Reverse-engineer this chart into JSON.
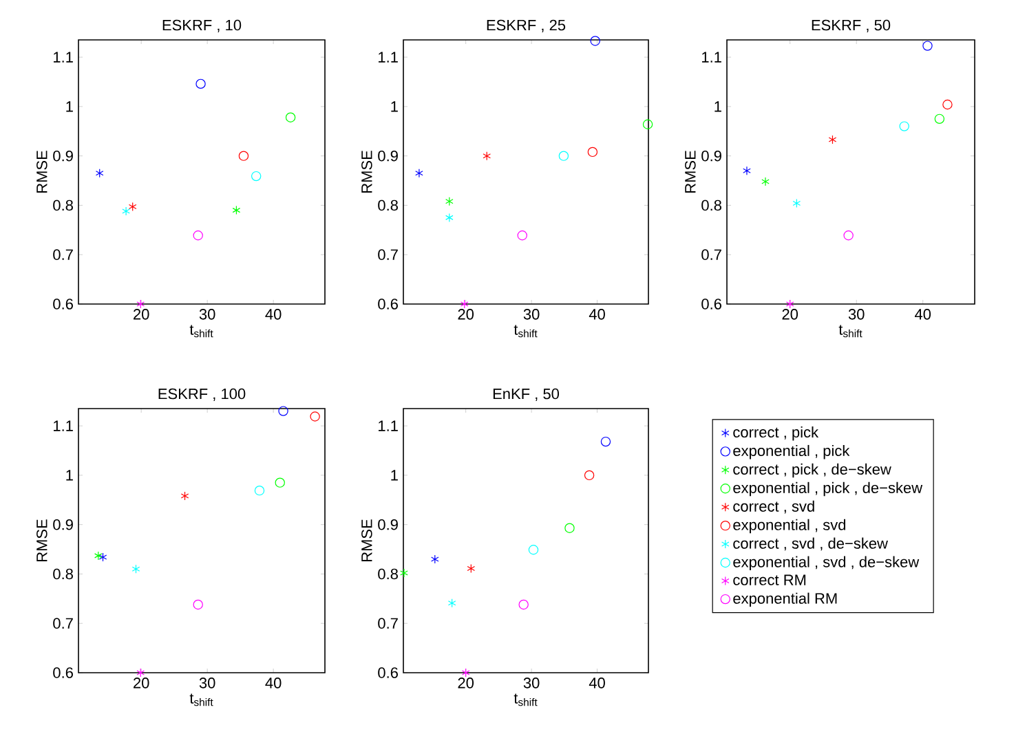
{
  "chart_data": [
    {
      "type": "scatter",
      "title": "ESKRF , 10",
      "xlabel": "t$_{shift}$",
      "ylabel": "RMSE",
      "xlim": [
        10.5,
        47.8
      ],
      "ylim": [
        0.6,
        1.135
      ],
      "xticks": [
        20,
        30,
        40
      ],
      "yticks": [
        0.6,
        0.7,
        0.8,
        0.9,
        1,
        1.1
      ],
      "series": [
        {
          "color": "#0000ff",
          "marker": "cross",
          "x": [
            13.7
          ],
          "values": [
            0.865
          ]
        },
        {
          "color": "#0000ff",
          "marker": "circle",
          "x": [
            29.0
          ],
          "values": [
            1.046
          ]
        },
        {
          "color": "#00ff00",
          "marker": "cross",
          "x": [
            34.4
          ],
          "values": [
            0.79
          ]
        },
        {
          "color": "#00ff00",
          "marker": "circle",
          "x": [
            42.6
          ],
          "values": [
            0.978
          ]
        },
        {
          "color": "#ff0000",
          "marker": "cross",
          "x": [
            18.7
          ],
          "values": [
            0.797
          ]
        },
        {
          "color": "#ff0000",
          "marker": "circle",
          "x": [
            35.5
          ],
          "values": [
            0.9
          ]
        },
        {
          "color": "#00ffff",
          "marker": "cross",
          "x": [
            17.7
          ],
          "values": [
            0.788
          ]
        },
        {
          "color": "#00ffff",
          "marker": "circle",
          "x": [
            37.4
          ],
          "values": [
            0.859
          ]
        },
        {
          "color": "#ff00ff",
          "marker": "cross",
          "x": [
            19.9
          ],
          "values": [
            0.6
          ]
        },
        {
          "color": "#ff00ff",
          "marker": "circle",
          "x": [
            28.6
          ],
          "values": [
            0.739
          ]
        }
      ]
    },
    {
      "type": "scatter",
      "title": "ESKRF , 25",
      "xlabel": "t$_{shift}$",
      "ylabel": "RMSE",
      "xlim": [
        10.5,
        47.8
      ],
      "ylim": [
        0.6,
        1.135
      ],
      "xticks": [
        20,
        30,
        40
      ],
      "yticks": [
        0.6,
        0.7,
        0.8,
        0.9,
        1,
        1.1
      ],
      "series": [
        {
          "color": "#0000ff",
          "marker": "cross",
          "x": [
            12.9
          ],
          "values": [
            0.865
          ]
        },
        {
          "color": "#0000ff",
          "marker": "circle",
          "x": [
            39.7
          ],
          "values": [
            1.133
          ]
        },
        {
          "color": "#00ff00",
          "marker": "cross",
          "x": [
            17.5
          ],
          "values": [
            0.808
          ]
        },
        {
          "color": "#00ff00",
          "marker": "circle",
          "x": [
            47.7
          ],
          "values": [
            0.964
          ]
        },
        {
          "color": "#ff0000",
          "marker": "cross",
          "x": [
            23.2
          ],
          "values": [
            0.9
          ]
        },
        {
          "color": "#ff0000",
          "marker": "circle",
          "x": [
            39.3
          ],
          "values": [
            0.908
          ]
        },
        {
          "color": "#00ffff",
          "marker": "cross",
          "x": [
            17.5
          ],
          "values": [
            0.775
          ]
        },
        {
          "color": "#00ffff",
          "marker": "circle",
          "x": [
            34.9
          ],
          "values": [
            0.9
          ]
        },
        {
          "color": "#ff00ff",
          "marker": "cross",
          "x": [
            19.8
          ],
          "values": [
            0.6
          ]
        },
        {
          "color": "#ff00ff",
          "marker": "circle",
          "x": [
            28.6
          ],
          "values": [
            0.739
          ]
        }
      ]
    },
    {
      "type": "scatter",
      "title": "ESKRF , 50",
      "xlabel": "t$_{shift}$",
      "ylabel": "RMSE",
      "xlim": [
        10.5,
        47.8
      ],
      "ylim": [
        0.6,
        1.135
      ],
      "xticks": [
        20,
        30,
        40
      ],
      "yticks": [
        0.6,
        0.7,
        0.8,
        0.9,
        1,
        1.1
      ],
      "series": [
        {
          "color": "#0000ff",
          "marker": "cross",
          "x": [
            13.5
          ],
          "values": [
            0.87
          ]
        },
        {
          "color": "#0000ff",
          "marker": "circle",
          "x": [
            40.7
          ],
          "values": [
            1.123
          ]
        },
        {
          "color": "#00ff00",
          "marker": "cross",
          "x": [
            16.3
          ],
          "values": [
            0.848
          ]
        },
        {
          "color": "#00ff00",
          "marker": "circle",
          "x": [
            42.5
          ],
          "values": [
            0.975
          ]
        },
        {
          "color": "#ff0000",
          "marker": "cross",
          "x": [
            26.4
          ],
          "values": [
            0.933
          ]
        },
        {
          "color": "#ff0000",
          "marker": "circle",
          "x": [
            43.7
          ],
          "values": [
            1.004
          ]
        },
        {
          "color": "#00ffff",
          "marker": "cross",
          "x": [
            21.0
          ],
          "values": [
            0.804
          ]
        },
        {
          "color": "#00ffff",
          "marker": "circle",
          "x": [
            37.2
          ],
          "values": [
            0.96
          ]
        },
        {
          "color": "#ff00ff",
          "marker": "cross",
          "x": [
            20.0
          ],
          "values": [
            0.6
          ]
        },
        {
          "color": "#ff00ff",
          "marker": "circle",
          "x": [
            28.8
          ],
          "values": [
            0.739
          ]
        }
      ]
    },
    {
      "type": "scatter",
      "title": "ESKRF , 100",
      "xlabel": "t$_{shift}$",
      "ylabel": "RMSE",
      "xlim": [
        10.5,
        47.8
      ],
      "ylim": [
        0.6,
        1.135
      ],
      "xticks": [
        20,
        30,
        40
      ],
      "yticks": [
        0.6,
        0.7,
        0.8,
        0.9,
        1,
        1.1
      ],
      "series": [
        {
          "color": "#0000ff",
          "marker": "cross",
          "x": [
            14.2
          ],
          "values": [
            0.834
          ]
        },
        {
          "color": "#0000ff",
          "marker": "circle",
          "x": [
            41.5
          ],
          "values": [
            1.13
          ]
        },
        {
          "color": "#00ff00",
          "marker": "cross",
          "x": [
            13.5
          ],
          "values": [
            0.837
          ]
        },
        {
          "color": "#00ff00",
          "marker": "circle",
          "x": [
            41.0
          ],
          "values": [
            0.985
          ]
        },
        {
          "color": "#ff0000",
          "marker": "cross",
          "x": [
            26.6
          ],
          "values": [
            0.958
          ]
        },
        {
          "color": "#ff0000",
          "marker": "circle",
          "x": [
            46.3
          ],
          "values": [
            1.119
          ]
        },
        {
          "color": "#00ffff",
          "marker": "cross",
          "x": [
            19.2
          ],
          "values": [
            0.81
          ]
        },
        {
          "color": "#00ffff",
          "marker": "circle",
          "x": [
            37.9
          ],
          "values": [
            0.969
          ]
        },
        {
          "color": "#ff00ff",
          "marker": "cross",
          "x": [
            19.9
          ],
          "values": [
            0.6
          ]
        },
        {
          "color": "#ff00ff",
          "marker": "circle",
          "x": [
            28.6
          ],
          "values": [
            0.738
          ]
        }
      ]
    },
    {
      "type": "scatter",
      "title": "EnKF , 50",
      "xlabel": "t$_{shift}$",
      "ylabel": "RMSE",
      "xlim": [
        10.5,
        47.8
      ],
      "ylim": [
        0.6,
        1.135
      ],
      "xticks": [
        20,
        30,
        40
      ],
      "yticks": [
        0.6,
        0.7,
        0.8,
        0.9,
        1,
        1.1
      ],
      "legend": "right",
      "series": [
        {
          "name": "correct , pick",
          "color": "#0000ff",
          "marker": "cross",
          "x": [
            15.3
          ],
          "values": [
            0.83
          ]
        },
        {
          "name": "exponential , pick",
          "color": "#0000ff",
          "marker": "circle",
          "x": [
            41.3
          ],
          "values": [
            1.068
          ]
        },
        {
          "name": "correct , pick , de−skew",
          "color": "#00ff00",
          "marker": "cross",
          "x": [
            10.6
          ],
          "values": [
            0.802
          ]
        },
        {
          "name": "exponential , pick , de−skew",
          "color": "#00ff00",
          "marker": "circle",
          "x": [
            35.8
          ],
          "values": [
            0.893
          ]
        },
        {
          "name": "correct , svd",
          "color": "#ff0000",
          "marker": "cross",
          "x": [
            20.8
          ],
          "values": [
            0.811
          ]
        },
        {
          "name": "exponential , svd",
          "color": "#ff0000",
          "marker": "circle",
          "x": [
            38.8
          ],
          "values": [
            1.0
          ]
        },
        {
          "name": "correct , svd , de−skew",
          "color": "#00ffff",
          "marker": "cross",
          "x": [
            17.9
          ],
          "values": [
            0.741
          ]
        },
        {
          "name": "exponential , svd , de−skew",
          "color": "#00ffff",
          "marker": "circle",
          "x": [
            30.3
          ],
          "values": [
            0.849
          ]
        },
        {
          "name": "correct RM",
          "color": "#ff00ff",
          "marker": "cross",
          "x": [
            20.0
          ],
          "values": [
            0.6
          ]
        },
        {
          "name": "exponential RM",
          "color": "#ff00ff",
          "marker": "circle",
          "x": [
            28.8
          ],
          "values": [
            0.738
          ]
        }
      ]
    }
  ]
}
